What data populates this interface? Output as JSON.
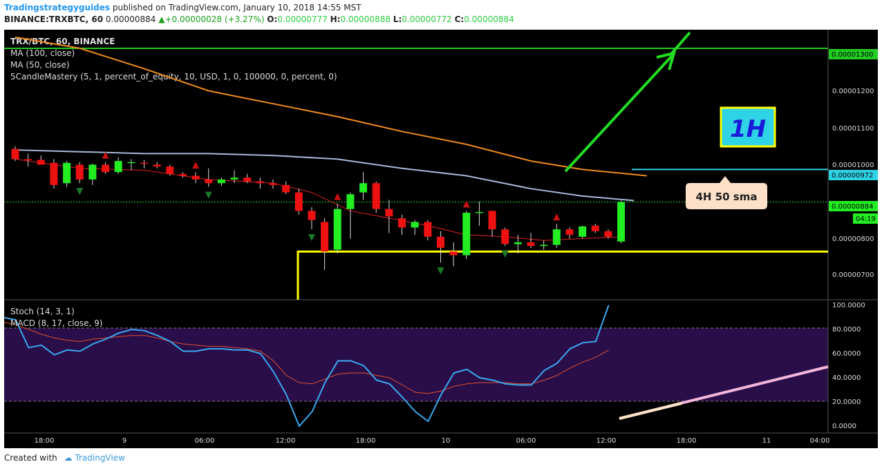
{
  "header": {
    "author": "Tradingstrategyguides",
    "published": "published on TradingView.com, January 10, 2018 14:55 MST",
    "symbol_line": "BINANCE:TRXBTC, 60",
    "last": "0.00000884",
    "change": "+0.00000028 (+3.27%)",
    "o_label": "O:",
    "o_val": "0.00000777",
    "h_label": "H:",
    "h_val": "0.00000888",
    "l_label": "L:",
    "l_val": "0.00000772",
    "c_label": "C:",
    "c_val": "0.00000884"
  },
  "chart": {
    "legend": [
      "TRX/BTC, 60, BINANCE",
      "MA (100, close)",
      "MA (50, close)",
      "5CandleMastery (5, 1, percent_of_equity, 10, USD, 1, 0, 100000, 0, percent, 0)"
    ],
    "timeframe_label": "1H",
    "sma_callout": "4H 50 sma",
    "price_ticks": [
      "0.00001200",
      "0.00001100",
      "0.00001000",
      "0.00000800",
      "0.00000700"
    ],
    "price_labels": {
      "top": "0.00001300",
      "sma": "0.00000972",
      "last": "0.00000884",
      "timer": "04:19"
    },
    "colors": {
      "up": "#22ee22",
      "down": "#ee1111",
      "ma100": "#f08c1e",
      "ma50": "#a8b8dc",
      "ma_fast": "#e02020",
      "green_line": "#22cc22",
      "yellow": "#ffff00",
      "cyan": "#2fd3e6",
      "stoch": "#3aa9f0",
      "macd": "#e0502a"
    },
    "time_ticks": [
      "18:00",
      "9",
      "06:00",
      "12:00",
      "18:00",
      "10",
      "06:00",
      "12:00",
      "18:00",
      "11",
      "04:00"
    ],
    "lower_legend": [
      "Stoch (14, 3, 1)",
      "MACD (8, 17, close, 9)"
    ],
    "lower_ticks": [
      "100.0000",
      "80.0000",
      "60.0000",
      "40.0000",
      "20.0000",
      "0.0000"
    ]
  },
  "chart_data": {
    "type": "candlestick",
    "symbol": "TRX/BTC",
    "price_ylim": [
      6.4e-06,
      1.36e-05
    ],
    "candles": [
      {
        "o": 1.028,
        "h": 1.035,
        "l": 0.995,
        "c": 1.0
      },
      {
        "o": 1.0,
        "h": 1.015,
        "l": 0.98,
        "c": 0.998
      },
      {
        "o": 0.998,
        "h": 1.01,
        "l": 0.985,
        "c": 0.985
      },
      {
        "o": 0.99,
        "h": 1.0,
        "l": 0.92,
        "c": 0.93
      },
      {
        "o": 0.935,
        "h": 0.995,
        "l": 0.925,
        "c": 0.99
      },
      {
        "o": 0.985,
        "h": 0.992,
        "l": 0.935,
        "c": 0.945
      },
      {
        "o": 0.945,
        "h": 0.988,
        "l": 0.93,
        "c": 0.985
      },
      {
        "o": 0.985,
        "h": 0.992,
        "l": 0.96,
        "c": 0.965
      },
      {
        "o": 0.965,
        "h": 1.005,
        "l": 0.96,
        "c": 0.995
      },
      {
        "o": 0.99,
        "h": 1.0,
        "l": 0.97,
        "c": 0.992
      },
      {
        "o": 0.99,
        "h": 0.998,
        "l": 0.975,
        "c": 0.988
      },
      {
        "o": 0.985,
        "h": 0.992,
        "l": 0.975,
        "c": 0.98
      },
      {
        "o": 0.98,
        "h": 0.985,
        "l": 0.955,
        "c": 0.96
      },
      {
        "o": 0.96,
        "h": 0.965,
        "l": 0.95,
        "c": 0.955
      },
      {
        "o": 0.955,
        "h": 0.965,
        "l": 0.935,
        "c": 0.945
      },
      {
        "o": 0.945,
        "h": 0.975,
        "l": 0.925,
        "c": 0.935
      },
      {
        "o": 0.935,
        "h": 0.95,
        "l": 0.928,
        "c": 0.945
      },
      {
        "o": 0.945,
        "h": 0.97,
        "l": 0.935,
        "c": 0.95
      },
      {
        "o": 0.95,
        "h": 0.96,
        "l": 0.935,
        "c": 0.94
      },
      {
        "o": 0.94,
        "h": 0.95,
        "l": 0.92,
        "c": 0.935
      },
      {
        "o": 0.935,
        "h": 0.945,
        "l": 0.92,
        "c": 0.93
      },
      {
        "o": 0.93,
        "h": 0.94,
        "l": 0.905,
        "c": 0.91
      },
      {
        "o": 0.91,
        "h": 0.92,
        "l": 0.85,
        "c": 0.86
      },
      {
        "o": 0.86,
        "h": 0.87,
        "l": 0.81,
        "c": 0.835
      },
      {
        "o": 0.83,
        "h": 0.84,
        "l": 0.7,
        "c": 0.75
      },
      {
        "o": 0.755,
        "h": 0.88,
        "l": 0.745,
        "c": 0.865
      },
      {
        "o": 0.865,
        "h": 0.91,
        "l": 0.785,
        "c": 0.905
      },
      {
        "o": 0.91,
        "h": 0.965,
        "l": 0.89,
        "c": 0.935
      },
      {
        "o": 0.935,
        "h": 0.94,
        "l": 0.855,
        "c": 0.865
      },
      {
        "o": 0.865,
        "h": 0.89,
        "l": 0.8,
        "c": 0.845
      },
      {
        "o": 0.84,
        "h": 0.85,
        "l": 0.795,
        "c": 0.815
      },
      {
        "o": 0.815,
        "h": 0.835,
        "l": 0.795,
        "c": 0.83
      },
      {
        "o": 0.83,
        "h": 0.835,
        "l": 0.78,
        "c": 0.79
      },
      {
        "o": 0.79,
        "h": 0.805,
        "l": 0.72,
        "c": 0.76
      },
      {
        "o": 0.75,
        "h": 0.775,
        "l": 0.71,
        "c": 0.74
      },
      {
        "o": 0.74,
        "h": 0.86,
        "l": 0.73,
        "c": 0.855
      },
      {
        "o": 0.855,
        "h": 0.885,
        "l": 0.82,
        "c": 0.857
      },
      {
        "o": 0.86,
        "h": 0.86,
        "l": 0.79,
        "c": 0.81
      },
      {
        "o": 0.81,
        "h": 0.815,
        "l": 0.765,
        "c": 0.77
      },
      {
        "o": 0.77,
        "h": 0.795,
        "l": 0.745,
        "c": 0.775
      },
      {
        "o": 0.775,
        "h": 0.8,
        "l": 0.76,
        "c": 0.765
      },
      {
        "o": 0.765,
        "h": 0.78,
        "l": 0.755,
        "c": 0.768
      },
      {
        "o": 0.768,
        "h": 0.825,
        "l": 0.76,
        "c": 0.81
      },
      {
        "o": 0.81,
        "h": 0.815,
        "l": 0.785,
        "c": 0.795
      },
      {
        "o": 0.79,
        "h": 0.82,
        "l": 0.785,
        "c": 0.818
      },
      {
        "o": 0.82,
        "h": 0.825,
        "l": 0.8,
        "c": 0.805
      },
      {
        "o": 0.805,
        "h": 0.81,
        "l": 0.785,
        "c": 0.79
      },
      {
        "o": 0.777,
        "h": 0.888,
        "l": 0.772,
        "c": 0.884
      }
    ],
    "price_scale_note": "candle o/h/l/c values are in units of 0.00001 BTC",
    "ma100": [
      [
        0,
        1.33
      ],
      [
        5,
        1.3
      ],
      [
        10,
        1.245
      ],
      [
        15,
        1.185
      ],
      [
        20,
        1.15
      ],
      [
        25,
        1.115
      ],
      [
        30,
        1.075
      ],
      [
        35,
        1.04
      ],
      [
        40,
        0.995
      ],
      [
        44,
        0.972
      ],
      [
        49,
        0.955
      ]
    ],
    "ma50": [
      [
        0,
        1.025
      ],
      [
        5,
        1.02
      ],
      [
        10,
        1.015
      ],
      [
        15,
        1.015
      ],
      [
        20,
        1.01
      ],
      [
        25,
        1.0
      ],
      [
        30,
        0.975
      ],
      [
        35,
        0.955
      ],
      [
        40,
        0.92
      ],
      [
        44,
        0.9
      ],
      [
        48,
        0.888
      ]
    ],
    "ma_fast": [
      [
        0,
        1.0
      ],
      [
        5,
        0.975
      ],
      [
        10,
        0.97
      ],
      [
        15,
        0.945
      ],
      [
        20,
        0.935
      ],
      [
        23,
        0.91
      ],
      [
        26,
        0.86
      ],
      [
        29,
        0.84
      ],
      [
        32,
        0.82
      ],
      [
        35,
        0.795
      ],
      [
        38,
        0.79
      ],
      [
        41,
        0.78
      ],
      [
        44,
        0.785
      ],
      [
        47,
        0.79
      ]
    ],
    "signals_up": [
      7,
      14,
      25,
      35,
      42
    ],
    "signals_down": [
      5,
      15,
      23,
      33,
      38
    ],
    "levels": {
      "resistance_green": 1.3,
      "sma_4h": 0.972,
      "support_yellow": 0.75
    },
    "stoch": [
      90,
      88,
      65,
      67,
      59,
      63,
      62,
      68,
      72,
      77,
      80,
      79,
      75,
      70,
      62,
      62,
      64,
      64,
      63,
      63,
      60,
      45,
      26,
      0,
      12,
      36,
      54,
      54,
      50,
      38,
      35,
      24,
      12,
      4,
      26,
      44,
      47,
      40,
      38,
      35,
      34,
      34,
      46,
      52,
      64,
      69,
      70,
      100
    ],
    "macd_signal": [
      86,
      84,
      80,
      76,
      73,
      71,
      70,
      72,
      73,
      74,
      75,
      75,
      73,
      70,
      68,
      67,
      66,
      66,
      65,
      64,
      62,
      54,
      42,
      36,
      35,
      39,
      43,
      44,
      44,
      42,
      40,
      34,
      28,
      27,
      29,
      33,
      35,
      36,
      36,
      36,
      35,
      35,
      38,
      42,
      48,
      53,
      57,
      63
    ],
    "lower_ylim": [
      0,
      100
    ],
    "lower_band": [
      20,
      80
    ]
  }
}
